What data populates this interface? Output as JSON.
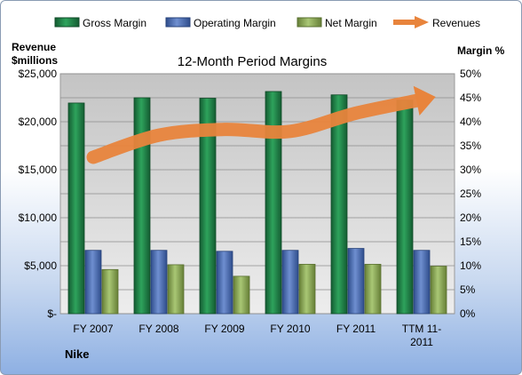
{
  "chart_data": {
    "type": "bar",
    "title": "12-Month Period Margins",
    "company_label": "Nike",
    "categories": [
      "FY 2007",
      "FY 2008",
      "FY 2009",
      "FY 2010",
      "FY 2011",
      "TTM 11-2011"
    ],
    "category_labels": [
      [
        "FY 2007"
      ],
      [
        "FY 2008"
      ],
      [
        "FY 2009"
      ],
      [
        "FY 2010"
      ],
      [
        "FY 2011"
      ],
      [
        "TTM 11-",
        "2011"
      ]
    ],
    "left_axis": {
      "label_lines": [
        "Revenue",
        "$millions"
      ],
      "min": 0,
      "max": 25000,
      "step": 5000,
      "tick_labels": [
        "$-",
        "$5,000",
        "$10,000",
        "$15,000",
        "$20,000",
        "$25,000"
      ]
    },
    "right_axis": {
      "label": "Margin %",
      "min": 0,
      "max": 50,
      "step": 5,
      "tick_labels": [
        "0%",
        "5%",
        "10%",
        "15%",
        "20%",
        "25%",
        "30%",
        "35%",
        "40%",
        "45%",
        "50%"
      ]
    },
    "series": [
      {
        "name": "Gross Margin",
        "type": "bar",
        "axis": "right",
        "color": "#1e8449",
        "values": [
          43.9,
          45.0,
          44.9,
          46.3,
          45.6,
          44.5
        ]
      },
      {
        "name": "Operating Margin",
        "type": "bar",
        "axis": "right",
        "color": "#4f6fb0",
        "values": [
          13.2,
          13.2,
          13.0,
          13.2,
          13.6,
          13.2
        ]
      },
      {
        "name": "Net Margin",
        "type": "bar",
        "axis": "right",
        "color": "#8fb05a",
        "values": [
          9.2,
          10.2,
          7.8,
          10.3,
          10.3,
          9.9
        ]
      },
      {
        "name": "Revenues",
        "type": "line",
        "axis": "left",
        "color": "#e8843c",
        "values": [
          16300,
          18600,
          19200,
          19000,
          20900,
          22300
        ]
      }
    ],
    "legend_position": "top",
    "grid": true
  }
}
